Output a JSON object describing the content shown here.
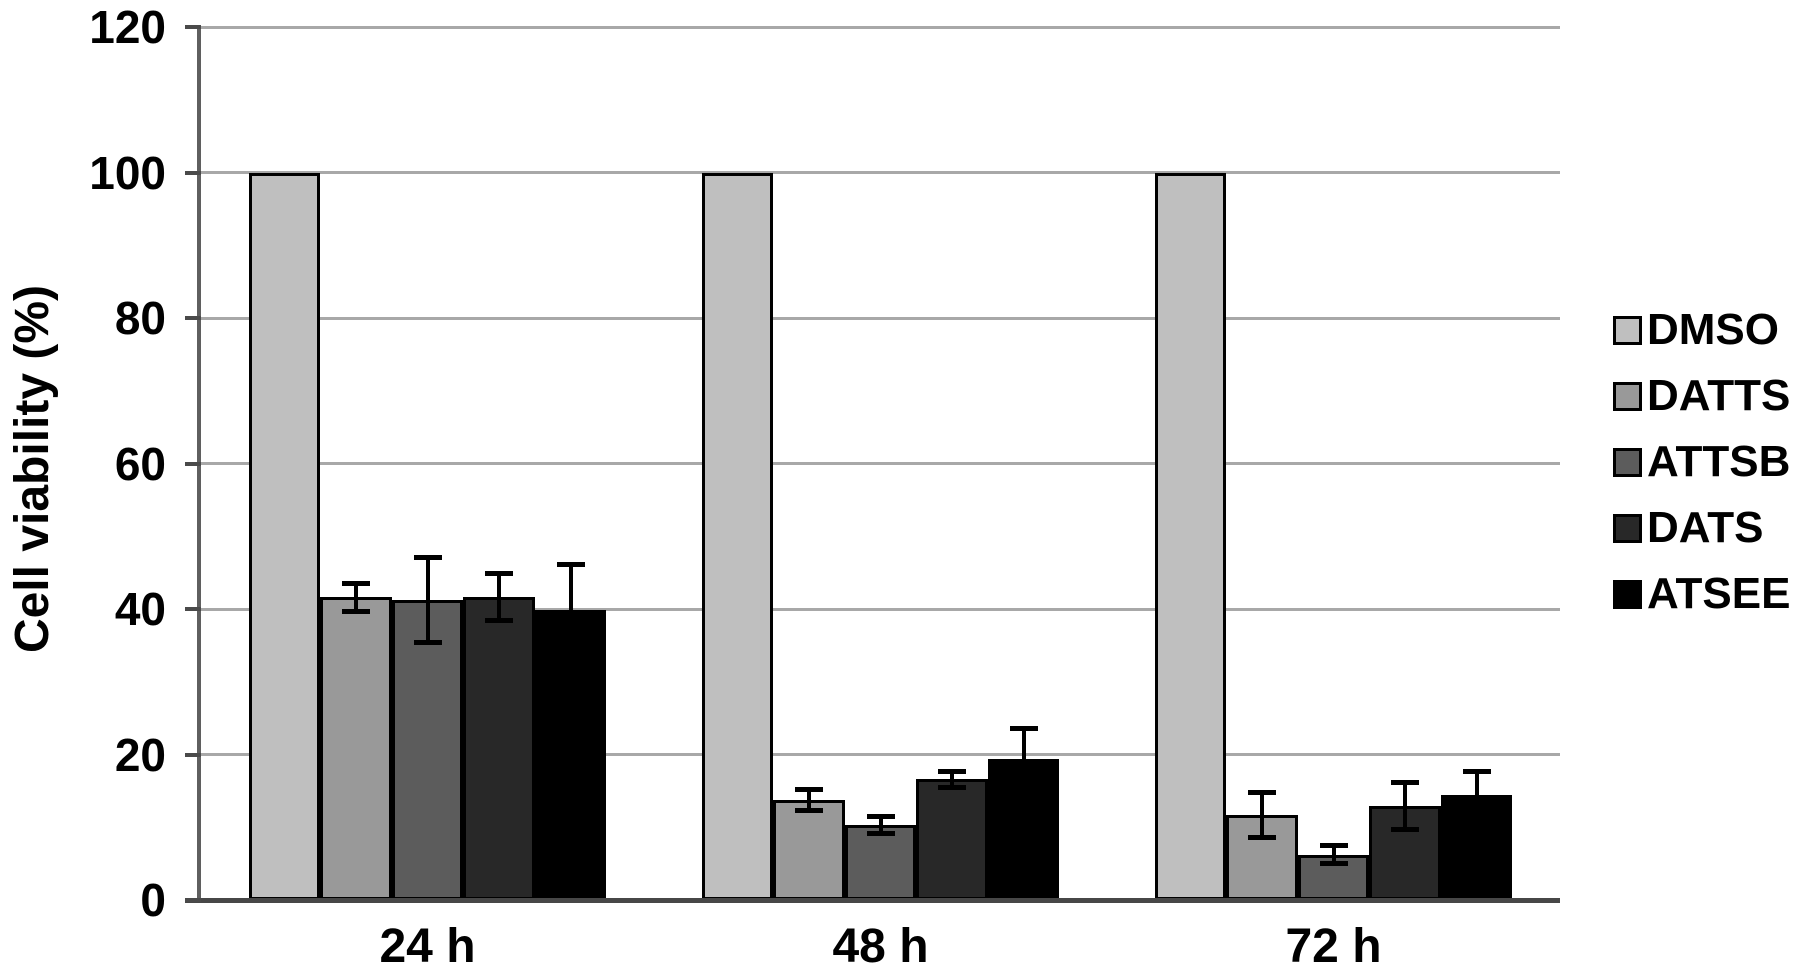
{
  "chart_data": {
    "type": "bar",
    "title": "",
    "xlabel": "",
    "ylabel": "Cell viability (%)",
    "categories": [
      "24 h",
      "48 h",
      "72 h"
    ],
    "ylim": [
      0,
      120
    ],
    "ytick_step": 20,
    "ytick_labels": [
      "0",
      "20",
      "40",
      "60",
      "80",
      "100",
      "120"
    ],
    "grid": true,
    "legend_position": "right",
    "error_bars": true,
    "series": [
      {
        "name": "DMSO",
        "color": "#bfbfbf",
        "values": [
          100,
          100,
          100
        ],
        "errors": [
          0,
          0,
          0
        ]
      },
      {
        "name": "DATTS",
        "color": "#999999",
        "values": [
          41.6,
          13.8,
          11.7
        ],
        "errors": [
          2.0,
          1.5,
          3.2
        ]
      },
      {
        "name": "ATTSB",
        "color": "#5c5c5c",
        "values": [
          41.2,
          10.3,
          6.2
        ],
        "errors": [
          5.9,
          1.2,
          1.3
        ]
      },
      {
        "name": "DATS",
        "color": "#282828",
        "values": [
          41.7,
          16.6,
          12.9
        ],
        "errors": [
          3.3,
          1.2,
          3.3
        ]
      },
      {
        "name": "ATSEE",
        "color": "#000000",
        "values": [
          39.9,
          19.4,
          14.5
        ],
        "errors": [
          6.3,
          4.3,
          3.3
        ]
      }
    ]
  },
  "styles": {
    "gridline_color": "#a8a8a8",
    "axis_color": "#4a4a4a",
    "text_color": "#000000",
    "background": "#ffffff"
  }
}
